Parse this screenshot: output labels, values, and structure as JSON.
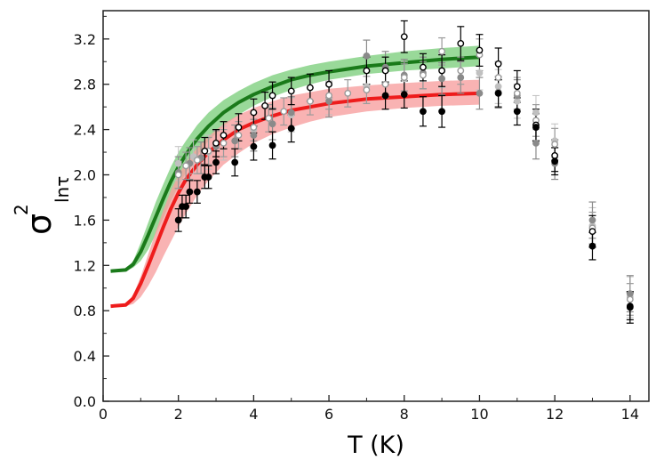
{
  "chart_data": {
    "type": "scatter",
    "title": "",
    "xlabel": "T (K)",
    "ylabel_symbol": "σ",
    "ylabel_superscript": "2",
    "ylabel_subscript": "lnτ",
    "xlim": [
      0,
      14.5
    ],
    "ylim": [
      0,
      3.45
    ],
    "x_ticks": [
      0,
      2,
      4,
      6,
      8,
      10,
      12,
      14
    ],
    "x_tick_labels": [
      "0",
      "2",
      "4",
      "6",
      "8",
      "10",
      "12",
      "14"
    ],
    "y_ticks": [
      0.0,
      0.4,
      0.8,
      1.2,
      1.6,
      2.0,
      2.4,
      2.8,
      3.2
    ],
    "y_tick_labels": [
      "0.0",
      "0.4",
      "0.8",
      "1.2",
      "1.6",
      "2.0",
      "2.4",
      "2.8",
      "3.2"
    ],
    "grid": false,
    "curves": [
      {
        "name": "green model",
        "color": "#1a7a1a",
        "band_color": "#7fd07f",
        "x": [
          0.2,
          0.6,
          0.8,
          1.0,
          1.2,
          1.4,
          1.6,
          1.8,
          2.0,
          2.2,
          2.5,
          2.8,
          3.2,
          3.6,
          4.0,
          4.5,
          5.0,
          5.5,
          6.0,
          7.0,
          8.0,
          9.0,
          10.0
        ],
        "y": [
          1.15,
          1.16,
          1.21,
          1.32,
          1.47,
          1.63,
          1.79,
          1.94,
          2.07,
          2.18,
          2.32,
          2.43,
          2.55,
          2.64,
          2.71,
          2.78,
          2.84,
          2.88,
          2.91,
          2.96,
          2.99,
          3.02,
          3.04
        ],
        "band_upper": [
          1.15,
          1.16,
          1.24,
          1.4,
          1.58,
          1.76,
          1.92,
          2.07,
          2.2,
          2.3,
          2.44,
          2.55,
          2.66,
          2.74,
          2.81,
          2.88,
          2.93,
          2.97,
          3.0,
          3.05,
          3.09,
          3.12,
          3.14
        ],
        "band_lower": [
          1.15,
          1.15,
          1.18,
          1.24,
          1.34,
          1.48,
          1.62,
          1.77,
          1.9,
          2.02,
          2.17,
          2.3,
          2.43,
          2.53,
          2.61,
          2.69,
          2.75,
          2.8,
          2.84,
          2.89,
          2.92,
          2.94,
          2.96
        ]
      },
      {
        "name": "red model",
        "color": "#ee1c1c",
        "band_color": "#f8a0a0",
        "x": [
          0.2,
          0.6,
          0.8,
          1.0,
          1.2,
          1.4,
          1.6,
          1.8,
          2.0,
          2.2,
          2.5,
          2.8,
          3.2,
          3.6,
          4.0,
          4.5,
          5.0,
          5.5,
          6.0,
          7.0,
          8.0,
          9.0,
          10.0
        ],
        "y": [
          0.84,
          0.85,
          0.91,
          1.04,
          1.2,
          1.37,
          1.54,
          1.7,
          1.84,
          1.96,
          2.09,
          2.2,
          2.31,
          2.4,
          2.46,
          2.52,
          2.57,
          2.6,
          2.63,
          2.67,
          2.69,
          2.71,
          2.72
        ],
        "band_upper": [
          0.84,
          0.85,
          0.94,
          1.1,
          1.3,
          1.5,
          1.69,
          1.86,
          2.0,
          2.11,
          2.24,
          2.34,
          2.45,
          2.53,
          2.59,
          2.65,
          2.7,
          2.73,
          2.76,
          2.79,
          2.81,
          2.83,
          2.84
        ],
        "band_lower": [
          0.84,
          0.84,
          0.86,
          0.92,
          1.02,
          1.14,
          1.28,
          1.41,
          1.54,
          1.66,
          1.82,
          1.95,
          2.09,
          2.19,
          2.28,
          2.36,
          2.42,
          2.47,
          2.51,
          2.56,
          2.59,
          2.61,
          2.62
        ]
      }
    ],
    "series": [
      {
        "name": "filled black",
        "marker": "filled",
        "color": "#000000",
        "points": [
          [
            2.0,
            1.6,
            0.1
          ],
          [
            2.1,
            1.72,
            0.1
          ],
          [
            2.2,
            1.72,
            0.1
          ],
          [
            2.3,
            1.85,
            0.1
          ],
          [
            2.5,
            1.85,
            0.1
          ],
          [
            2.7,
            1.98,
            0.1
          ],
          [
            2.8,
            1.98,
            0.1
          ],
          [
            3.0,
            2.11,
            0.1
          ],
          [
            3.5,
            2.11,
            0.12
          ],
          [
            4.0,
            2.25,
            0.12
          ],
          [
            4.5,
            2.26,
            0.12
          ],
          [
            5.0,
            2.41,
            0.12
          ],
          [
            7.5,
            2.7,
            0.12
          ],
          [
            8.0,
            2.71,
            0.12
          ],
          [
            8.5,
            2.56,
            0.13
          ],
          [
            9.0,
            2.56,
            0.14
          ],
          [
            10.5,
            2.72,
            0.12
          ],
          [
            11.0,
            2.56,
            0.12
          ],
          [
            11.5,
            2.42,
            0.12
          ],
          [
            12.0,
            2.12,
            0.12
          ],
          [
            13.0,
            1.37,
            0.12
          ],
          [
            14.0,
            0.84,
            0.12
          ]
        ]
      },
      {
        "name": "open black",
        "marker": "open",
        "color": "#000000",
        "points": [
          [
            2.7,
            2.21,
            0.12
          ],
          [
            3.0,
            2.28,
            0.12
          ],
          [
            3.2,
            2.35,
            0.12
          ],
          [
            3.6,
            2.42,
            0.12
          ],
          [
            4.0,
            2.55,
            0.12
          ],
          [
            4.3,
            2.61,
            0.12
          ],
          [
            4.5,
            2.7,
            0.12
          ],
          [
            5.0,
            2.74,
            0.12
          ],
          [
            5.5,
            2.77,
            0.12
          ],
          [
            6.0,
            2.8,
            0.12
          ],
          [
            7.0,
            2.92,
            0.12
          ],
          [
            7.5,
            2.92,
            0.12
          ],
          [
            8.0,
            3.22,
            0.14
          ],
          [
            8.5,
            2.95,
            0.12
          ],
          [
            9.0,
            2.92,
            0.14
          ],
          [
            9.5,
            3.16,
            0.15
          ],
          [
            10.0,
            3.1,
            0.14
          ],
          [
            10.5,
            2.98,
            0.14
          ],
          [
            11.0,
            2.78,
            0.14
          ],
          [
            11.5,
            2.44,
            0.14
          ],
          [
            12.0,
            2.17,
            0.14
          ],
          [
            13.0,
            1.5,
            0.14
          ],
          [
            14.0,
            0.83,
            0.14
          ]
        ]
      },
      {
        "name": "open gray",
        "marker": "open",
        "color": "#9a9a9a",
        "points": [
          [
            2.0,
            2.0,
            0.12
          ],
          [
            2.2,
            2.08,
            0.12
          ],
          [
            2.5,
            2.13,
            0.12
          ],
          [
            2.8,
            2.21,
            0.12
          ],
          [
            3.2,
            2.28,
            0.12
          ],
          [
            3.6,
            2.35,
            0.12
          ],
          [
            4.0,
            2.42,
            0.12
          ],
          [
            4.4,
            2.5,
            0.12
          ],
          [
            4.8,
            2.56,
            0.12
          ],
          [
            5.5,
            2.65,
            0.12
          ],
          [
            6.0,
            2.7,
            0.12
          ],
          [
            6.5,
            2.72,
            0.12
          ],
          [
            7.0,
            2.75,
            0.12
          ],
          [
            7.5,
            2.8,
            0.12
          ],
          [
            8.0,
            2.86,
            0.12
          ],
          [
            8.5,
            2.88,
            0.12
          ],
          [
            9.0,
            3.09,
            0.12
          ],
          [
            9.5,
            2.92,
            0.12
          ],
          [
            10.0,
            3.06,
            0.14
          ],
          [
            10.5,
            2.86,
            0.14
          ],
          [
            11.0,
            2.72,
            0.14
          ],
          [
            11.5,
            2.48,
            0.14
          ],
          [
            12.0,
            2.27,
            0.14
          ],
          [
            13.0,
            1.53,
            0.14
          ],
          [
            14.0,
            0.9,
            0.14
          ]
        ]
      },
      {
        "name": "filled gray",
        "marker": "filled",
        "color": "#8a8a8a",
        "points": [
          [
            2.0,
            2.02,
            0.14
          ],
          [
            2.3,
            2.1,
            0.14
          ],
          [
            2.6,
            2.15,
            0.14
          ],
          [
            3.0,
            2.25,
            0.14
          ],
          [
            3.5,
            2.3,
            0.14
          ],
          [
            4.0,
            2.35,
            0.14
          ],
          [
            4.5,
            2.45,
            0.14
          ],
          [
            5.0,
            2.55,
            0.14
          ],
          [
            6.0,
            2.65,
            0.14
          ],
          [
            7.0,
            3.05,
            0.14
          ],
          [
            7.5,
            2.95,
            0.14
          ],
          [
            8.0,
            2.88,
            0.14
          ],
          [
            8.5,
            2.9,
            0.14
          ],
          [
            9.0,
            2.85,
            0.14
          ],
          [
            9.5,
            2.86,
            0.14
          ],
          [
            10.0,
            2.72,
            0.14
          ],
          [
            10.5,
            2.73,
            0.14
          ],
          [
            11.0,
            2.7,
            0.14
          ],
          [
            11.5,
            2.28,
            0.14
          ],
          [
            12.0,
            2.1,
            0.14
          ],
          [
            13.0,
            1.6,
            0.16
          ],
          [
            14.0,
            0.95,
            0.16
          ]
        ]
      },
      {
        "name": "light gray",
        "marker": "filled",
        "color": "#c0c0c0",
        "points": [
          [
            2.0,
            2.1,
            0.15
          ],
          [
            2.4,
            2.16,
            0.15
          ],
          [
            2.8,
            2.2,
            0.15
          ],
          [
            3.2,
            2.28,
            0.15
          ],
          [
            4.0,
            2.4,
            0.15
          ],
          [
            5.0,
            2.53,
            0.15
          ],
          [
            6.0,
            2.68,
            0.15
          ],
          [
            7.0,
            2.78,
            0.15
          ],
          [
            8.0,
            2.85,
            0.15
          ],
          [
            9.0,
            2.92,
            0.15
          ],
          [
            10.0,
            2.9,
            0.15
          ],
          [
            10.5,
            2.78,
            0.15
          ],
          [
            11.0,
            2.65,
            0.15
          ],
          [
            11.5,
            2.55,
            0.15
          ],
          [
            12.0,
            2.3,
            0.15
          ],
          [
            13.0,
            1.55,
            0.16
          ],
          [
            14.0,
            0.92,
            0.18
          ]
        ]
      }
    ]
  }
}
